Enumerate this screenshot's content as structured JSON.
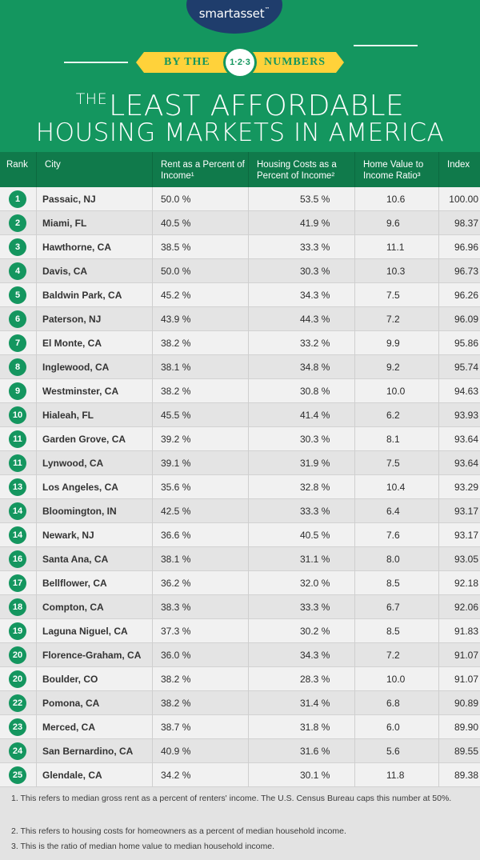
{
  "header": {
    "logo": "smartasset",
    "logo_tm": "™",
    "banner_left": "BY THE",
    "banner_circle": "1·2·3",
    "banner_right": "NUMBERS",
    "title_small": "THE",
    "title_line1": "LEAST AFFORDABLE",
    "title_line2": "HOUSING MARKETS IN AMERICA"
  },
  "colors": {
    "brand_green": "#14965f",
    "header_dark_green": "#107a4b",
    "logo_navy": "#1f3d6c",
    "banner_yellow": "#ffd23a"
  },
  "table": {
    "columns": [
      "Rank",
      "City",
      "Rent as a Percent of Income¹",
      "Housing Costs as a Percent of Income²",
      "Home Value to Income Ratio³",
      "Index"
    ],
    "rows": [
      {
        "rank": "1",
        "city": "Passaic, NJ",
        "rent": "50.0 %",
        "housing": "53.5 %",
        "home_value": "10.6",
        "index": "100.00"
      },
      {
        "rank": "2",
        "city": "Miami, FL",
        "rent": "40.5 %",
        "housing": "41.9 %",
        "home_value": "9.6",
        "index": "98.37"
      },
      {
        "rank": "3",
        "city": "Hawthorne, CA",
        "rent": "38.5 %",
        "housing": "33.3 %",
        "home_value": "11.1",
        "index": "96.96"
      },
      {
        "rank": "4",
        "city": "Davis, CA",
        "rent": "50.0 %",
        "housing": "30.3 %",
        "home_value": "10.3",
        "index": "96.73"
      },
      {
        "rank": "5",
        "city": "Baldwin Park, CA",
        "rent": "45.2 %",
        "housing": "34.3 %",
        "home_value": "7.5",
        "index": "96.26"
      },
      {
        "rank": "6",
        "city": "Paterson, NJ",
        "rent": "43.9 %",
        "housing": "44.3 %",
        "home_value": "7.2",
        "index": "96.09"
      },
      {
        "rank": "7",
        "city": "El Monte, CA",
        "rent": "38.2 %",
        "housing": "33.2 %",
        "home_value": "9.9",
        "index": "95.86"
      },
      {
        "rank": "8",
        "city": "Inglewood, CA",
        "rent": "38.1 %",
        "housing": "34.8 %",
        "home_value": "9.2",
        "index": "95.74"
      },
      {
        "rank": "9",
        "city": "Westminster, CA",
        "rent": "38.2 %",
        "housing": "30.8 %",
        "home_value": "10.0",
        "index": "94.63"
      },
      {
        "rank": "10",
        "city": "Hialeah, FL",
        "rent": "45.5 %",
        "housing": "41.4 %",
        "home_value": "6.2",
        "index": "93.93"
      },
      {
        "rank": "11",
        "city": "Garden Grove, CA",
        "rent": "39.2 %",
        "housing": "30.3 %",
        "home_value": "8.1",
        "index": "93.64"
      },
      {
        "rank": "11",
        "city": "Lynwood, CA",
        "rent": "39.1 %",
        "housing": "31.9 %",
        "home_value": "7.5",
        "index": "93.64"
      },
      {
        "rank": "13",
        "city": "Los Angeles, CA",
        "rent": "35.6 %",
        "housing": "32.8 %",
        "home_value": "10.4",
        "index": "93.29"
      },
      {
        "rank": "14",
        "city": "Bloomington, IN",
        "rent": "42.5 %",
        "housing": "33.3 %",
        "home_value": "6.4",
        "index": "93.17"
      },
      {
        "rank": "14",
        "city": "Newark, NJ",
        "rent": "36.6 %",
        "housing": "40.5 %",
        "home_value": "7.6",
        "index": "93.17"
      },
      {
        "rank": "16",
        "city": "Santa Ana, CA",
        "rent": "38.1 %",
        "housing": "31.1 %",
        "home_value": "8.0",
        "index": "93.05"
      },
      {
        "rank": "17",
        "city": "Bellflower, CA",
        "rent": "36.2 %",
        "housing": "32.0 %",
        "home_value": "8.5",
        "index": "92.18"
      },
      {
        "rank": "18",
        "city": "Compton, CA",
        "rent": "38.3 %",
        "housing": "33.3 %",
        "home_value": "6.7",
        "index": "92.06"
      },
      {
        "rank": "19",
        "city": "Laguna Niguel, CA",
        "rent": "37.3 %",
        "housing": "30.2 %",
        "home_value": "8.5",
        "index": "91.83"
      },
      {
        "rank": "20",
        "city": "Florence-Graham, CA",
        "rent": "36.0 %",
        "housing": "34.3 %",
        "home_value": "7.2",
        "index": "91.07"
      },
      {
        "rank": "20",
        "city": "Boulder, CO",
        "rent": "38.2 %",
        "housing": "28.3 %",
        "home_value": "10.0",
        "index": "91.07"
      },
      {
        "rank": "22",
        "city": "Pomona, CA",
        "rent": "38.2 %",
        "housing": "31.4 %",
        "home_value": "6.8",
        "index": "90.89"
      },
      {
        "rank": "23",
        "city": "Merced, CA",
        "rent": "38.7 %",
        "housing": "31.8 %",
        "home_value": "6.0",
        "index": "89.90"
      },
      {
        "rank": "24",
        "city": "San Bernardino, CA",
        "rent": "40.9 %",
        "housing": "31.6 %",
        "home_value": "5.6",
        "index": "89.55"
      },
      {
        "rank": "25",
        "city": "Glendale, CA",
        "rent": "34.2 %",
        "housing": "30.1 %",
        "home_value": "11.8",
        "index": "89.38"
      }
    ]
  },
  "footnotes": [
    "1.  This refers to median gross rent as a percent of renters' income. The U.S. Census Bureau caps this number at 50%.",
    "2. This refers to housing costs for homeowners as a percent of median household income.",
    "3. This is the ratio of median home value to median household income."
  ]
}
